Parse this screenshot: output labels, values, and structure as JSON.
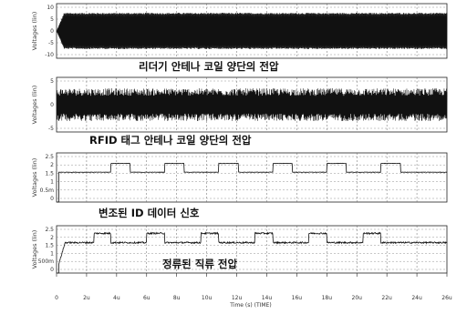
{
  "chart_data": {
    "type": "line",
    "x_ticks": [
      "0",
      "2u",
      "4u",
      "6u",
      "8u",
      "10u",
      "12u",
      "14u",
      "16u",
      "18u",
      "20u",
      "22u",
      "24u",
      "26u"
    ],
    "x_range": [
      0,
      26
    ],
    "x_label": "Time (s) (TIME)",
    "panels": [
      {
        "caption": "리더기 안테나 코일 양단의 전압",
        "ylabel": "Voltages (lin)",
        "yticks": [
          "10",
          "5",
          "0",
          "-5",
          "-10"
        ],
        "ylim": [
          -12,
          12
        ],
        "signal": "dense-oscillation",
        "amplitude": 8
      },
      {
        "caption": "RFID 태그 안테나 코일 양단의 전압",
        "ylabel": "Voltages (lin)",
        "yticks": [
          "5",
          "0",
          "-5"
        ],
        "ylim": [
          -7,
          7
        ],
        "signal": "dense-oscillation-noisy",
        "amplitude": 4.2
      },
      {
        "caption": "변조된 ID 데이터 신호",
        "ylabel": "Voltages (lin)",
        "yticks": [
          "2.5",
          "2",
          "1.5",
          "1",
          "0.5m",
          "0"
        ],
        "ylim": [
          0,
          2.8
        ],
        "signal": "pulses",
        "low": 1.7,
        "high": 2.2,
        "pulses": [
          [
            3.6,
            4.9
          ],
          [
            7.2,
            8.5
          ],
          [
            10.8,
            12.1
          ],
          [
            14.4,
            15.7
          ],
          [
            18.0,
            19.3
          ],
          [
            21.6,
            22.9
          ]
        ]
      },
      {
        "caption": "정류된 직류 전압",
        "ylabel": "Voltages (lin)",
        "yticks": [
          "2.5",
          "2",
          "1.5",
          "1",
          "500m",
          "0"
        ],
        "ylim": [
          0,
          2.8
        ],
        "signal": "rectified",
        "low": 1.8,
        "high": 2.35,
        "pulses": [
          [
            2.4,
            3.6
          ],
          [
            6.0,
            7.2
          ],
          [
            9.6,
            10.8
          ],
          [
            13.2,
            14.4
          ],
          [
            16.8,
            18.0
          ],
          [
            20.4,
            21.6
          ]
        ]
      }
    ]
  }
}
